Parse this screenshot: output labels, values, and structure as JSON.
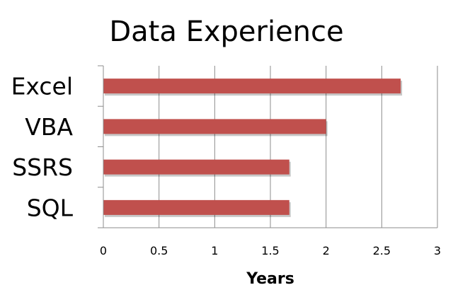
{
  "chart_data": {
    "type": "bar",
    "orientation": "horizontal",
    "title": "Data Experience",
    "xlabel": "Years",
    "ylabel": "",
    "categories": [
      "Excel",
      "VBA",
      "SSRS",
      "SQL"
    ],
    "values": [
      2.67,
      2.0,
      1.67,
      1.67
    ],
    "xlim": [
      0,
      3
    ],
    "x_ticks": [
      "0",
      "0.5",
      "1",
      "1.5",
      "2",
      "2.5",
      "3"
    ],
    "grid": "vertical",
    "legend": "none",
    "bar_color": "#c0504d"
  }
}
